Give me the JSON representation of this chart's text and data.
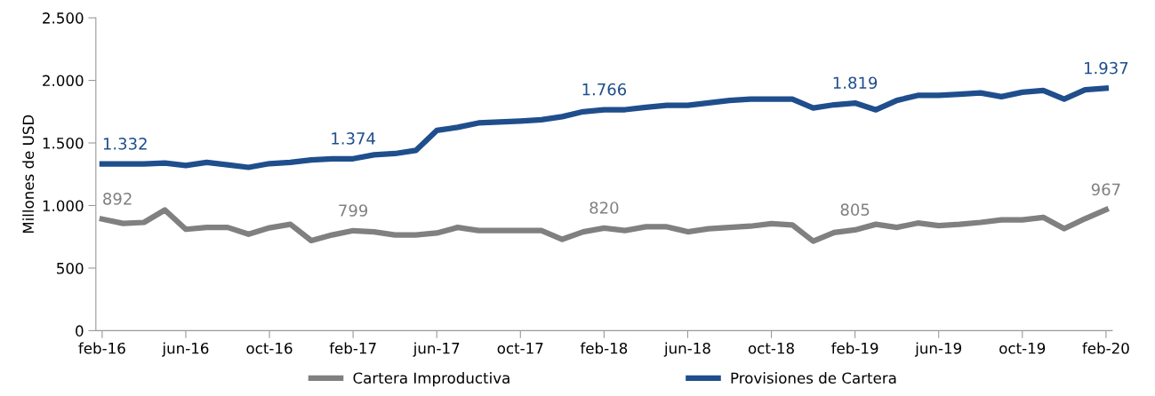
{
  "chart_data": {
    "type": "line",
    "ylabel": "Millones de USD",
    "categories": [
      "feb-16",
      null,
      null,
      null,
      "jun-16",
      null,
      null,
      null,
      "oct-16",
      null,
      null,
      null,
      "feb-17",
      null,
      null,
      null,
      "jun-17",
      null,
      null,
      null,
      "oct-17",
      null,
      null,
      null,
      "feb-18",
      null,
      null,
      null,
      "jun-18",
      null,
      null,
      null,
      "oct-18",
      null,
      null,
      null,
      "feb-19",
      null,
      null,
      null,
      "jun-19",
      null,
      null,
      null,
      "oct-19",
      null,
      null,
      null,
      "feb-20"
    ],
    "series": [
      {
        "name": "Cartera Improductiva",
        "color": "#808080",
        "values": [
          892,
          857,
          865,
          964,
          810,
          825,
          825,
          771,
          822,
          850,
          720,
          765,
          799,
          790,
          765,
          765,
          780,
          825,
          800,
          800,
          800,
          800,
          730,
          790,
          820,
          800,
          830,
          830,
          790,
          815,
          825,
          835,
          855,
          845,
          715,
          785,
          805,
          850,
          825,
          860,
          840,
          850,
          865,
          885,
          885,
          905,
          815,
          895,
          967
        ],
        "value_labels": [
          "892",
          null,
          null,
          null,
          null,
          null,
          null,
          null,
          null,
          null,
          null,
          null,
          "799",
          null,
          null,
          null,
          null,
          null,
          null,
          null,
          null,
          null,
          null,
          null,
          "820",
          null,
          null,
          null,
          null,
          null,
          null,
          null,
          null,
          null,
          null,
          null,
          "805",
          null,
          null,
          null,
          null,
          null,
          null,
          null,
          null,
          null,
          null,
          null,
          "967"
        ]
      },
      {
        "name": "Provisiones de Cartera",
        "color": "#1f4e8c",
        "values": [
          1332,
          1332,
          1332,
          1340,
          1320,
          1345,
          1325,
          1305,
          1335,
          1345,
          1365,
          1374,
          1374,
          1405,
          1415,
          1440,
          1600,
          1625,
          1660,
          1668,
          1675,
          1685,
          1710,
          1750,
          1766,
          1766,
          1785,
          1800,
          1800,
          1820,
          1840,
          1850,
          1850,
          1850,
          1780,
          1805,
          1819,
          1765,
          1840,
          1880,
          1880,
          1890,
          1900,
          1870,
          1905,
          1920,
          1850,
          1925,
          1937
        ],
        "value_labels": [
          "1.332",
          null,
          null,
          null,
          null,
          null,
          null,
          null,
          null,
          null,
          null,
          null,
          "1.374",
          null,
          null,
          null,
          null,
          null,
          null,
          null,
          null,
          null,
          null,
          null,
          "1.766",
          null,
          null,
          null,
          null,
          null,
          null,
          null,
          null,
          null,
          null,
          null,
          "1.819",
          null,
          null,
          null,
          null,
          null,
          null,
          null,
          null,
          null,
          null,
          null,
          "1.937"
        ]
      }
    ],
    "ylim": [
      0,
      2500
    ],
    "yticks": [
      0,
      500,
      {
        "value": 1000,
        "label": "1.000"
      },
      {
        "value": 1500,
        "label": "1.500"
      },
      {
        "value": 2000,
        "label": "2.000"
      },
      {
        "value": 2500,
        "label": "2.500"
      }
    ],
    "grid": false,
    "legend": "bottom",
    "marker": "none",
    "line_style": "solid"
  }
}
